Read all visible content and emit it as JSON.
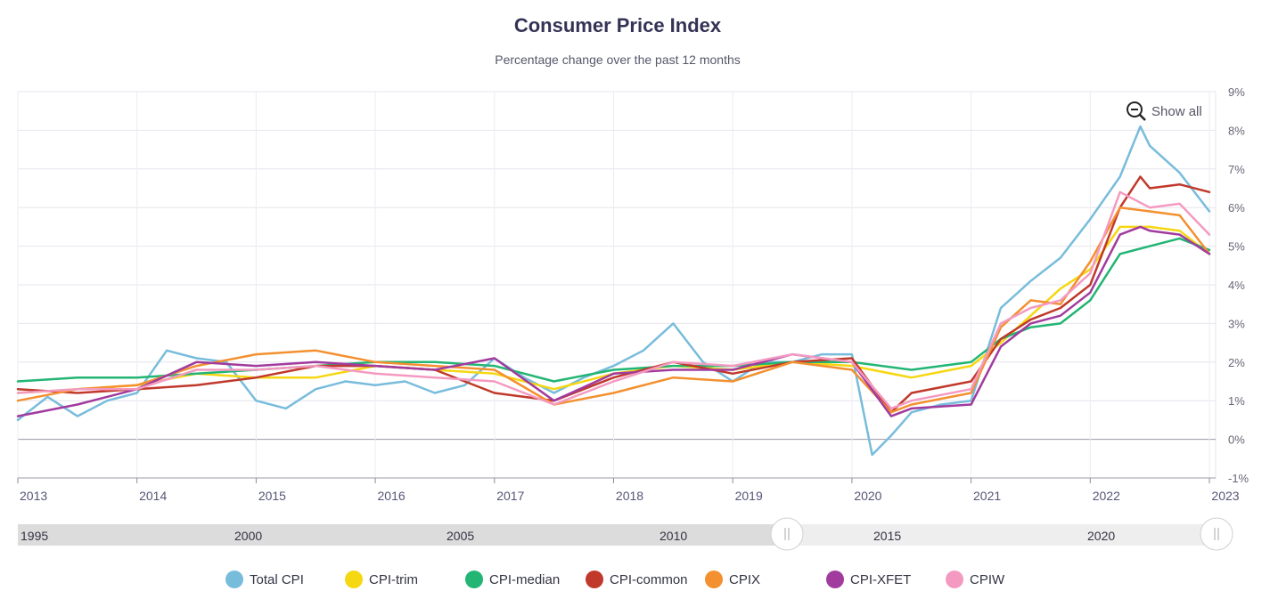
{
  "chart_data": {
    "type": "line",
    "title": "Consumer Price Index",
    "subtitle": "Percentage change over the past 12 months",
    "ylim": [
      -1,
      9
    ],
    "yticks": [
      "-1%",
      "0%",
      "1%",
      "2%",
      "3%",
      "4%",
      "5%",
      "6%",
      "7%",
      "8%",
      "9%"
    ],
    "xticks": [
      "2013",
      "2014",
      "2015",
      "2016",
      "2017",
      "2018",
      "2019",
      "2020",
      "2021",
      "2022",
      "2023"
    ],
    "grid": true,
    "legend_position": "bottom",
    "series": [
      {
        "name": "Total CPI",
        "color": "#78bcdc",
        "x": [
          2013.0,
          2013.25,
          2013.5,
          2013.75,
          2014.0,
          2014.25,
          2014.5,
          2014.75,
          2015.0,
          2015.25,
          2015.5,
          2015.75,
          2016.0,
          2016.25,
          2016.5,
          2016.75,
          2017.0,
          2017.25,
          2017.5,
          2017.75,
          2018.0,
          2018.25,
          2018.5,
          2018.75,
          2019.0,
          2019.25,
          2019.5,
          2019.75,
          2020.0,
          2020.17,
          2020.33,
          2020.5,
          2020.75,
          2021.0,
          2021.25,
          2021.5,
          2021.75,
          2022.0,
          2022.25,
          2022.42,
          2022.5,
          2022.75,
          2023.0
        ],
        "values": [
          0.5,
          1.1,
          0.6,
          1.0,
          1.2,
          2.3,
          2.1,
          2.0,
          1.0,
          0.8,
          1.3,
          1.5,
          1.4,
          1.5,
          1.2,
          1.4,
          2.1,
          1.6,
          1.2,
          1.6,
          1.9,
          2.3,
          3.0,
          2.0,
          1.5,
          2.0,
          2.0,
          2.2,
          2.2,
          -0.4,
          0.1,
          0.7,
          0.9,
          1.0,
          3.4,
          4.1,
          4.7,
          5.7,
          6.8,
          8.1,
          7.6,
          6.9,
          5.9
        ]
      },
      {
        "name": "CPI-trim",
        "color": "#f5d712",
        "x": [
          2013.0,
          2013.5,
          2014.0,
          2014.5,
          2015.0,
          2015.5,
          2016.0,
          2016.5,
          2017.0,
          2017.5,
          2018.0,
          2018.5,
          2019.0,
          2019.5,
          2020.0,
          2020.5,
          2021.0,
          2021.25,
          2021.5,
          2021.75,
          2022.0,
          2022.25,
          2022.5,
          2022.75,
          2023.0
        ],
        "values": [
          1.2,
          1.3,
          1.4,
          1.7,
          1.6,
          1.6,
          1.9,
          1.8,
          1.7,
          1.3,
          1.7,
          1.9,
          1.8,
          2.0,
          1.9,
          1.6,
          1.9,
          2.5,
          3.2,
          3.9,
          4.4,
          5.5,
          5.5,
          5.4,
          4.8
        ]
      },
      {
        "name": "CPI-median",
        "color": "#22b573",
        "x": [
          2013.0,
          2013.5,
          2014.0,
          2014.5,
          2015.0,
          2015.5,
          2016.0,
          2016.5,
          2017.0,
          2017.5,
          2018.0,
          2018.5,
          2019.0,
          2019.5,
          2020.0,
          2020.5,
          2021.0,
          2021.25,
          2021.5,
          2021.75,
          2022.0,
          2022.25,
          2022.5,
          2022.75,
          2023.0
        ],
        "values": [
          1.5,
          1.6,
          1.6,
          1.7,
          1.8,
          1.9,
          2.0,
          2.0,
          1.9,
          1.5,
          1.8,
          1.9,
          1.9,
          2.0,
          2.0,
          1.8,
          2.0,
          2.6,
          2.9,
          3.0,
          3.6,
          4.8,
          5.0,
          5.2,
          4.9
        ]
      },
      {
        "name": "CPI-common",
        "color": "#c0392b",
        "x": [
          2013.0,
          2013.5,
          2014.0,
          2014.5,
          2015.0,
          2015.5,
          2016.0,
          2016.5,
          2017.0,
          2017.5,
          2018.0,
          2018.5,
          2019.0,
          2019.5,
          2020.0,
          2020.33,
          2020.5,
          2021.0,
          2021.25,
          2021.5,
          2021.75,
          2022.0,
          2022.25,
          2022.42,
          2022.5,
          2022.75,
          2023.0
        ],
        "values": [
          1.3,
          1.2,
          1.3,
          1.4,
          1.6,
          1.9,
          1.9,
          1.8,
          1.2,
          1.0,
          1.6,
          2.0,
          1.7,
          2.0,
          2.1,
          0.7,
          1.2,
          1.5,
          2.6,
          3.1,
          3.4,
          4.0,
          6.0,
          6.8,
          6.5,
          6.6,
          6.4
        ]
      },
      {
        "name": "CPIX",
        "color": "#f39030",
        "x": [
          2013.0,
          2013.5,
          2014.0,
          2014.5,
          2015.0,
          2015.5,
          2016.0,
          2016.5,
          2017.0,
          2017.5,
          2018.0,
          2018.5,
          2019.0,
          2019.5,
          2020.0,
          2020.33,
          2020.5,
          2021.0,
          2021.25,
          2021.5,
          2021.75,
          2022.0,
          2022.25,
          2022.5,
          2022.75,
          2023.0
        ],
        "values": [
          1.0,
          1.3,
          1.4,
          1.9,
          2.2,
          2.3,
          2.0,
          1.9,
          1.8,
          0.9,
          1.2,
          1.6,
          1.5,
          2.0,
          1.8,
          0.7,
          0.9,
          1.2,
          2.9,
          3.6,
          3.5,
          4.6,
          6.0,
          5.9,
          5.8,
          4.8
        ]
      },
      {
        "name": "CPI-XFET",
        "color": "#a13b9e",
        "x": [
          2013.0,
          2013.5,
          2014.0,
          2014.5,
          2015.0,
          2015.5,
          2016.0,
          2016.5,
          2017.0,
          2017.5,
          2018.0,
          2018.5,
          2019.0,
          2019.5,
          2020.0,
          2020.33,
          2020.5,
          2021.0,
          2021.25,
          2021.5,
          2021.75,
          2022.0,
          2022.25,
          2022.42,
          2022.5,
          2022.75,
          2023.0
        ],
        "values": [
          0.6,
          0.9,
          1.3,
          2.0,
          1.9,
          2.0,
          1.9,
          1.8,
          2.1,
          1.0,
          1.7,
          1.8,
          1.8,
          2.2,
          2.0,
          0.6,
          0.8,
          0.9,
          2.4,
          3.0,
          3.2,
          3.8,
          5.3,
          5.5,
          5.4,
          5.3,
          4.8
        ]
      },
      {
        "name": "CPIW",
        "color": "#f49ac1",
        "x": [
          2013.0,
          2013.5,
          2014.0,
          2014.5,
          2015.0,
          2015.5,
          2016.0,
          2016.5,
          2017.0,
          2017.5,
          2018.0,
          2018.5,
          2019.0,
          2019.5,
          2020.0,
          2020.33,
          2020.5,
          2021.0,
          2021.25,
          2021.5,
          2021.75,
          2022.0,
          2022.25,
          2022.5,
          2022.75,
          2023.0
        ],
        "values": [
          1.2,
          1.3,
          1.3,
          1.8,
          1.8,
          1.9,
          1.7,
          1.6,
          1.5,
          0.9,
          1.5,
          2.0,
          1.9,
          2.2,
          2.0,
          0.8,
          1.0,
          1.3,
          3.0,
          3.4,
          3.6,
          4.3,
          6.4,
          6.0,
          6.1,
          5.3
        ]
      }
    ]
  },
  "controls": {
    "show_all_label": "Show all",
    "navigator_labels": [
      "1995",
      "2000",
      "2005",
      "2010",
      "2015",
      "2020"
    ]
  }
}
